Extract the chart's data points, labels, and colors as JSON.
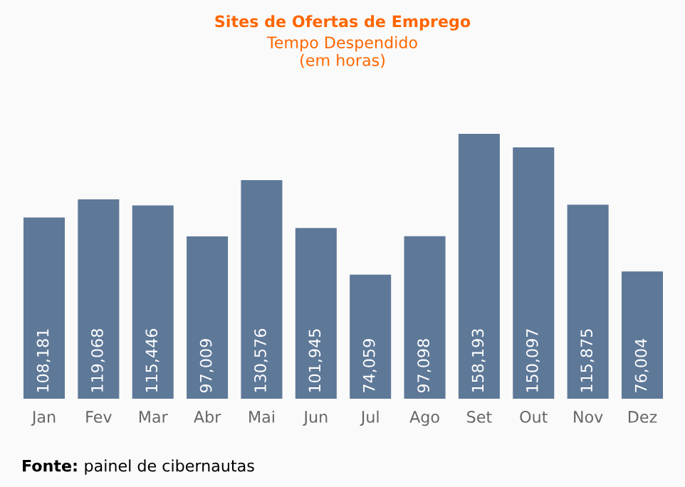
{
  "chart_data": {
    "type": "bar",
    "title": "Sites de Ofertas de Emprego",
    "subtitle": "Tempo Despendido\n(em horas)",
    "categories": [
      "Jan",
      "Fev",
      "Mar",
      "Abr",
      "Mai",
      "Jun",
      "Jul",
      "Ago",
      "Set",
      "Out",
      "Nov",
      "Dez"
    ],
    "values": [
      108181,
      119068,
      115446,
      97009,
      130576,
      101945,
      74059,
      97098,
      158193,
      150097,
      115875,
      76004
    ],
    "value_labels": [
      "108,181",
      "119,068",
      "115,446",
      "97,009",
      "130,576",
      "101,945",
      "74,059",
      "97,098",
      "158,193",
      "150,097",
      "115,875",
      "76,004"
    ],
    "color": "#5e7898",
    "annotations": [
      "Fonte: painel de cibernautas"
    ]
  }
}
